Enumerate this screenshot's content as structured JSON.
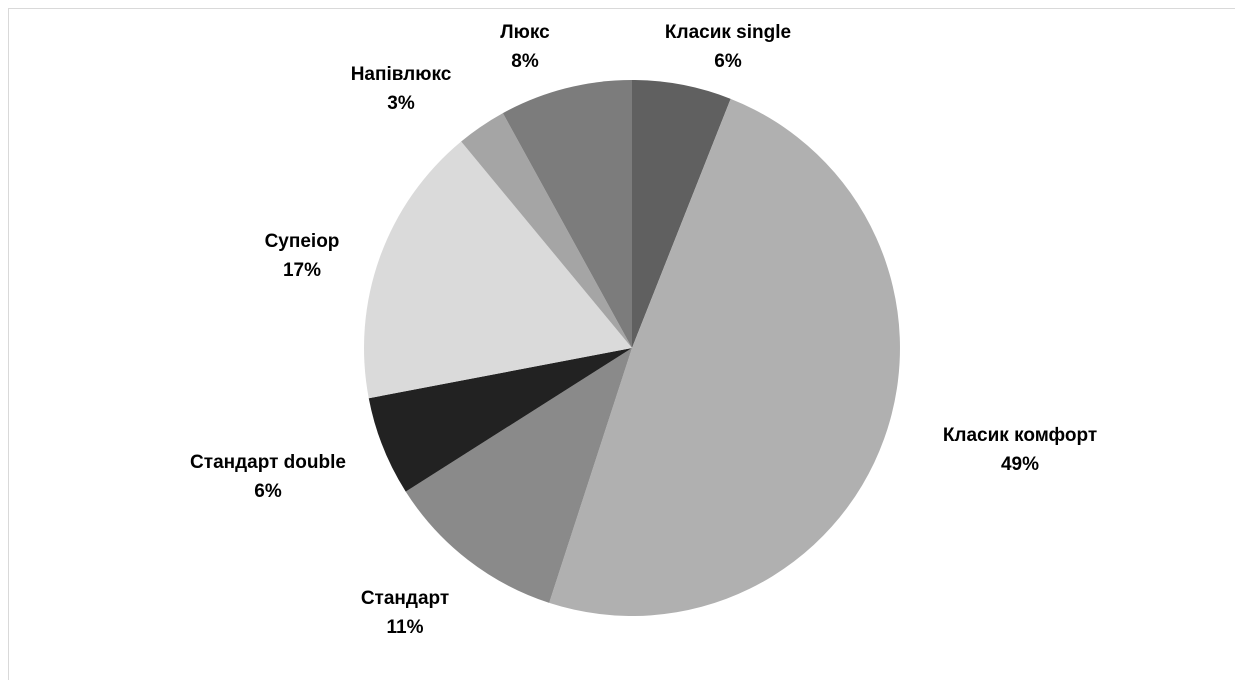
{
  "chart_data": {
    "type": "pie",
    "title": "",
    "start_angle_deg": 0,
    "direction": "clockwise",
    "slices": [
      {
        "name": "Класик single",
        "value": 6,
        "label": "6%",
        "color": "#606060"
      },
      {
        "name": "Класик комфорт",
        "value": 49,
        "label": "49%",
        "color": "#b0b0b0"
      },
      {
        "name": "Стандарт",
        "value": 11,
        "label": "11%",
        "color": "#8a8a8a"
      },
      {
        "name": "Стандарт double",
        "value": 6,
        "label": "6%",
        "color": "#222222"
      },
      {
        "name": "Супеіор",
        "value": 17,
        "label": "17%",
        "color": "#dadada"
      },
      {
        "name": "Напівлюкс",
        "value": 3,
        "label": "3%",
        "color": "#a5a5a5"
      },
      {
        "name": "Люкс",
        "value": 8,
        "label": "8%",
        "color": "#7c7c7c"
      }
    ]
  }
}
